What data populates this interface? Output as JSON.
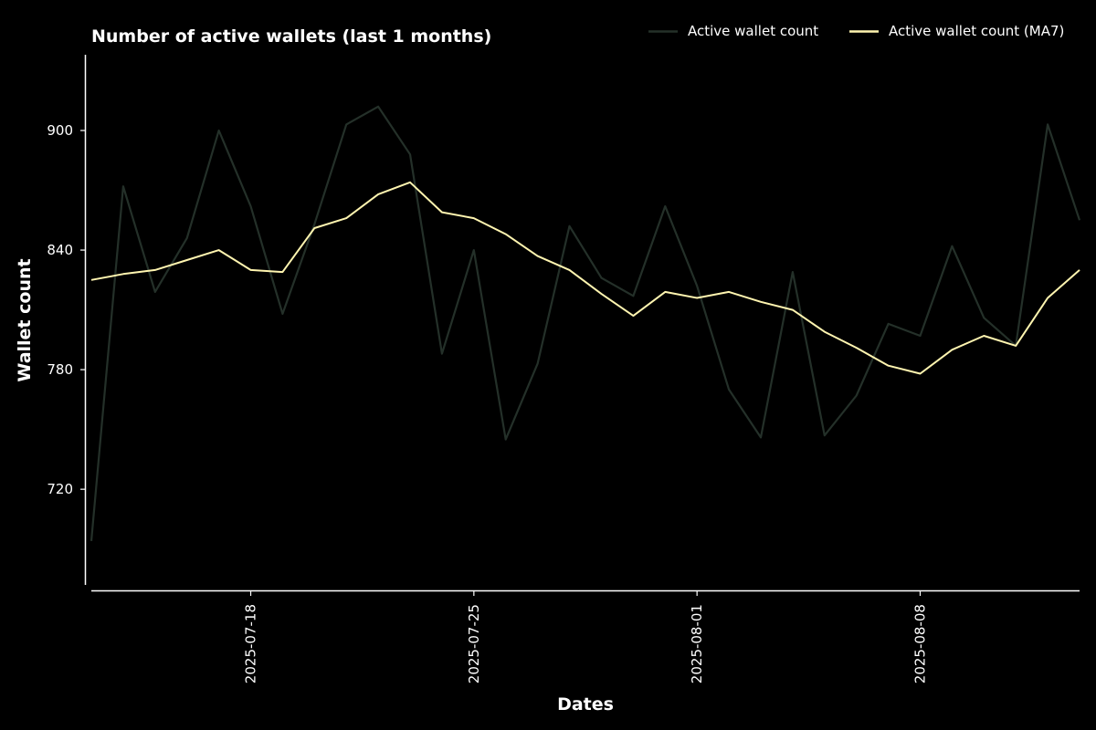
{
  "chart_data": {
    "type": "line",
    "title": "Number of active wallets (last 1 months)",
    "xlabel": "Dates",
    "ylabel": "Wallet count",
    "x": [
      "2025-07-13",
      "2025-07-14",
      "2025-07-15",
      "2025-07-16",
      "2025-07-17",
      "2025-07-18",
      "2025-07-19",
      "2025-07-20",
      "2025-07-21",
      "2025-07-22",
      "2025-07-23",
      "2025-07-24",
      "2025-07-25",
      "2025-07-26",
      "2025-07-27",
      "2025-07-28",
      "2025-07-29",
      "2025-07-30",
      "2025-07-31",
      "2025-08-01",
      "2025-08-02",
      "2025-08-03",
      "2025-08-04",
      "2025-08-05",
      "2025-08-06",
      "2025-08-07",
      "2025-08-08",
      "2025-08-09",
      "2025-08-10",
      "2025-08-11",
      "2025-08-12",
      "2025-08-13"
    ],
    "series": [
      {
        "name": "Active wallet count",
        "color": "#243029",
        "values": [
          694,
          872,
          819,
          846,
          900,
          862,
          808,
          853,
          903,
          912,
          888,
          788,
          840,
          745,
          783,
          852,
          826,
          817,
          862,
          822,
          770,
          746,
          829,
          747,
          767,
          803,
          797,
          842,
          806,
          792,
          903,
          855
        ]
      },
      {
        "name": "Active wallet count (MA7)",
        "color": "#fff5b0",
        "values": [
          825,
          828,
          830,
          835,
          840,
          830,
          829,
          851,
          856,
          868,
          874,
          859,
          856,
          848,
          837,
          830,
          818,
          807,
          819,
          816,
          819,
          814,
          810,
          799,
          791,
          782,
          778,
          790,
          797,
          792,
          816,
          830
        ]
      }
    ],
    "xticks": [
      "2025-07-18",
      "2025-07-25",
      "2025-08-01",
      "2025-08-08"
    ],
    "yticks": [
      720,
      780,
      840,
      900
    ],
    "ylim": [
      672,
      938
    ],
    "grid": false,
    "legend": "top-right",
    "background": "#000000",
    "axis_color": "#ffffff"
  }
}
